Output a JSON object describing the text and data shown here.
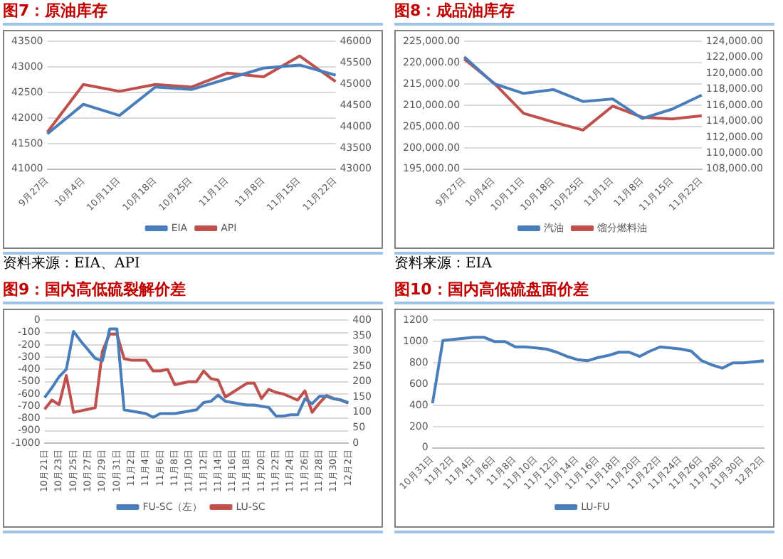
{
  "chart_data": [
    {
      "type": "line",
      "title": "图7：原油库存",
      "categories": [
        "9月27日",
        "10月4日",
        "10月11日",
        "10月18日",
        "10月25日",
        "11月1日",
        "11月8日",
        "11月15日",
        "11月22日"
      ],
      "series": [
        {
          "name": "EIA",
          "color": "#4a7ebb",
          "values": [
            41690,
            42270,
            42050,
            42610,
            42560,
            42770,
            42980,
            43040,
            42840
          ]
        },
        {
          "name": "API",
          "color": "#c0504d",
          "axis": "y2",
          "values": [
            43870,
            44990,
            44830,
            44990,
            44930,
            45260,
            45170,
            45660,
            45060
          ]
        }
      ],
      "ylim": [
        41000,
        43500
      ],
      "yticks": [
        41000,
        41500,
        42000,
        42500,
        43000,
        43500
      ],
      "y2lim": [
        43000,
        46000
      ],
      "y2ticks": [
        43000,
        43500,
        44000,
        44500,
        45000,
        45500,
        46000
      ],
      "grid": "y",
      "legend": "bottom",
      "marker": "none",
      "annotations": [
        "资料来源：EIA、API"
      ]
    },
    {
      "type": "line",
      "title": "图8：成品油库存",
      "categories": [
        "9月27日",
        "10月4日",
        "10月11日",
        "10月18日",
        "10月25日",
        "11月1日",
        "11月8日",
        "11月15日",
        "11月22日"
      ],
      "series": [
        {
          "name": "汽油",
          "color": "#4a7ebb",
          "values": [
            221400,
            215100,
            212800,
            213700,
            210900,
            211500,
            206900,
            209100,
            212400
          ]
        },
        {
          "name": "馏分燃料油",
          "color": "#c0504d",
          "axis": "y2",
          "values": [
            121800,
            118800,
            115000,
            113900,
            112900,
            115900,
            114500,
            114300,
            114700
          ]
        }
      ],
      "ylim": [
        195000,
        225000
      ],
      "yticks": [
        {
          "value": 195000,
          "label": "195,000.00"
        },
        {
          "value": 200000,
          "label": "200,000.00"
        },
        {
          "value": 205000,
          "label": "205,000.00"
        },
        {
          "value": 210000,
          "label": "210,000.00"
        },
        {
          "value": 215000,
          "label": "215,000.00"
        },
        {
          "value": 220000,
          "label": "220,000.00"
        },
        {
          "value": 225000,
          "label": "225,000.00"
        }
      ],
      "y2lim": [
        108000,
        124000
      ],
      "y2ticks": [
        {
          "value": 108000,
          "label": "108,000.00"
        },
        {
          "value": 110000,
          "label": "110,000.00"
        },
        {
          "value": 112000,
          "label": "112,000.00"
        },
        {
          "value": 114000,
          "label": "114,000.00"
        },
        {
          "value": 116000,
          "label": "116,000.00"
        },
        {
          "value": 118000,
          "label": "118,000.00"
        },
        {
          "value": 120000,
          "label": "120,000.00"
        },
        {
          "value": 122000,
          "label": "122,000.00"
        },
        {
          "value": 124000,
          "label": "124,000.00"
        }
      ],
      "grid": "y",
      "legend": "bottom",
      "marker": "none",
      "annotations": [
        "资料来源：EIA"
      ]
    },
    {
      "type": "line",
      "title": "图9：国内高低硫裂解价差",
      "categories": [
        "10月21日",
        null,
        "10月23日",
        null,
        "10月25日",
        null,
        "10月27日",
        null,
        "10月29日",
        null,
        "10月31日",
        null,
        "11月2日",
        null,
        "11月4日",
        null,
        "11月6日",
        null,
        "11月8日",
        null,
        "11月10日",
        null,
        "11月12日",
        null,
        "11月14日",
        null,
        "11月16日",
        null,
        "11月18日",
        null,
        "11月20日",
        null,
        "11月22日",
        null,
        "11月24日",
        null,
        "11月26日",
        null,
        "11月28日",
        null,
        "11月30日",
        null,
        "12月2日"
      ],
      "series": [
        {
          "name": "FU-SC（左）",
          "color": "#4a7ebb",
          "values": [
            -630,
            -550,
            -460,
            -400,
            -90,
            -170,
            -240,
            -310,
            -330,
            -70,
            -70,
            -730,
            -740,
            -750,
            -760,
            -790,
            -760,
            -760,
            -760,
            -750,
            -740,
            -730,
            -670,
            -660,
            -610,
            -660,
            -670,
            -680,
            -690,
            -690,
            -700,
            -710,
            -780,
            -780,
            -770,
            -770,
            -640,
            -680,
            -620,
            -620,
            -640,
            -650,
            -670
          ]
        },
        {
          "name": "LU-SC",
          "color": "#c0504d",
          "axis": "y2",
          "values": [
            110,
            140,
            125,
            220,
            100,
            105,
            110,
            115,
            300,
            355,
            355,
            275,
            270,
            270,
            270,
            235,
            235,
            240,
            190,
            195,
            200,
            200,
            235,
            210,
            205,
            150,
            165,
            180,
            195,
            195,
            145,
            175,
            165,
            160,
            150,
            140,
            170,
            100,
            130,
            155,
            145,
            140,
            130
          ]
        }
      ],
      "ylim": [
        -1000,
        0
      ],
      "yticks": [
        -1000,
        -900,
        -800,
        -700,
        -600,
        -500,
        -400,
        -300,
        -200,
        -100,
        0
      ],
      "y2lim": [
        0,
        400
      ],
      "y2ticks": [
        0,
        50,
        100,
        150,
        200,
        250,
        300,
        350,
        400
      ],
      "grid": "y",
      "legend": "bottom",
      "marker": "none"
    },
    {
      "type": "line",
      "title": "图10：国内高低硫盘面价差",
      "categories": [
        "10月31日",
        null,
        "11月2日",
        null,
        "11月4日",
        null,
        "11月6日",
        null,
        "11月8日",
        null,
        "11月10日",
        null,
        "11月12日",
        null,
        "11月14日",
        null,
        "11月16日",
        null,
        "11月18日",
        null,
        "11月20日",
        null,
        "11月22日",
        null,
        "11月24日",
        null,
        "11月26日",
        null,
        "11月28日",
        null,
        "11月30日",
        null,
        "12月2日"
      ],
      "series": [
        {
          "name": "LU-FU",
          "color": "#4a7ebb",
          "values": [
            420,
            1010,
            1020,
            1030,
            1040,
            1040,
            1000,
            1000,
            950,
            950,
            940,
            930,
            900,
            860,
            830,
            820,
            850,
            870,
            900,
            900,
            860,
            910,
            950,
            940,
            930,
            910,
            820,
            780,
            750,
            800,
            800,
            810,
            820
          ]
        }
      ],
      "ylim": [
        0,
        1200
      ],
      "yticks": [
        0,
        200,
        400,
        600,
        800,
        1000,
        1200
      ],
      "grid": "y",
      "legend": "bottom",
      "marker": "none"
    }
  ]
}
